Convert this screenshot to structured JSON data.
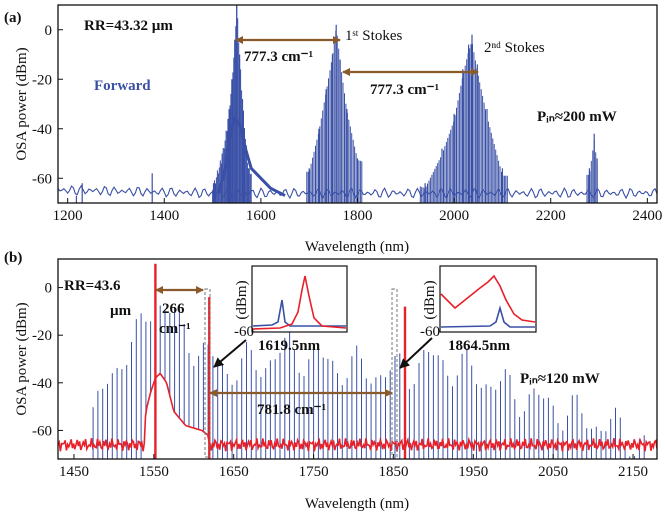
{
  "chart_data": [
    {
      "type": "line",
      "panel_label": "(a)",
      "xlabel": "Wavelength (nm)",
      "ylabel": "OSA power (dBm)",
      "xlim": [
        1180,
        2420
      ],
      "ylim": [
        -70,
        10
      ],
      "xticks": [
        "1200",
        "1400",
        "1600",
        "1800",
        "2000",
        "2200",
        "2400"
      ],
      "yticks": [
        "0",
        "-20",
        "-40",
        "-60"
      ],
      "grid": false,
      "annotations": {
        "rr": "RR=43.32 µm",
        "forward": "Forward",
        "shift1": "777.3 cm⁻¹",
        "shift2": "777.3 cm⁻¹",
        "stokes1": "1ˢᵗ Stokes",
        "stokes2": "2ⁿᵈ Stokes",
        "pin": "Pᵢₙ≈200 mW"
      },
      "series": [
        {
          "color": "#3a50a6",
          "peaks": [
            {
              "x": 1218,
              "y": -67
            },
            {
              "x": 1230,
              "y": -62
            },
            {
              "x": 1375,
              "y": -58
            },
            {
              "x": 1502,
              "y": -62
            },
            {
              "x": 1520,
              "y": -50
            },
            {
              "x": 1532,
              "y": -36
            },
            {
              "x": 1540,
              "y": -20
            },
            {
              "x": 1546,
              "y": -4
            },
            {
              "x": 1550,
              "y": 12
            },
            {
              "x": 1556,
              "y": -10
            },
            {
              "x": 1562,
              "y": -28
            },
            {
              "x": 1574,
              "y": -56
            },
            {
              "x": 1700,
              "y": -56
            },
            {
              "x": 1720,
              "y": -40
            },
            {
              "x": 1735,
              "y": -24
            },
            {
              "x": 1748,
              "y": -10
            },
            {
              "x": 1756,
              "y": 2
            },
            {
              "x": 1764,
              "y": -12
            },
            {
              "x": 1778,
              "y": -32
            },
            {
              "x": 1800,
              "y": -52
            },
            {
              "x": 1940,
              "y": -62
            },
            {
              "x": 1975,
              "y": -48
            },
            {
              "x": 2000,
              "y": -34
            },
            {
              "x": 2018,
              "y": -16
            },
            {
              "x": 2030,
              "y": -6
            },
            {
              "x": 2037,
              "y": -2
            },
            {
              "x": 2048,
              "y": -14
            },
            {
              "x": 2068,
              "y": -32
            },
            {
              "x": 2100,
              "y": -56
            },
            {
              "x": 2280,
              "y": -56
            },
            {
              "x": 2290,
              "y": -42
            },
            {
              "x": 2296,
              "y": -52
            }
          ]
        }
      ]
    },
    {
      "type": "line",
      "panel_label": "(b)",
      "xlabel": "Wavelength (nm)",
      "ylabel": "OSA power (dBm)",
      "xlim": [
        1430,
        2180
      ],
      "ylim": [
        -72,
        12
      ],
      "xticks": [
        "1450",
        "1550",
        "1650",
        "1750",
        "1850",
        "1950",
        "2050",
        "2150"
      ],
      "yticks": [
        "0",
        "-20",
        "-40",
        "-60"
      ],
      "grid": false,
      "annotations": {
        "rr_line1": "RR=43.6",
        "rr_line2": "µm",
        "shift_small_1": "266",
        "shift_small_2": "cm⁻¹",
        "shift_large": "781.8 cm⁻¹",
        "pin": "Pᵢₙ≈120 mW",
        "inset1_caption": "1619.5nm",
        "inset2_caption": "1864.5nm",
        "inset_ylabel": "(dBm)",
        "inset_ytick": "-60"
      },
      "series": [
        {
          "color": "#3a50a6",
          "comb_spacing_nm": 6,
          "envelope": [
            {
              "x": 1470,
              "y": -58
            },
            {
              "x": 1490,
              "y": -42
            },
            {
              "x": 1510,
              "y": -28
            },
            {
              "x": 1530,
              "y": -22
            },
            {
              "x": 1550,
              "y": -4
            },
            {
              "x": 1580,
              "y": -14
            },
            {
              "x": 1610,
              "y": -28
            },
            {
              "x": 1640,
              "y": -34
            },
            {
              "x": 1680,
              "y": -32
            },
            {
              "x": 1720,
              "y": -26
            },
            {
              "x": 1750,
              "y": -30
            },
            {
              "x": 1800,
              "y": -34
            },
            {
              "x": 1850,
              "y": -36
            },
            {
              "x": 1900,
              "y": -30
            },
            {
              "x": 1950,
              "y": -36
            },
            {
              "x": 2000,
              "y": -44
            },
            {
              "x": 2050,
              "y": -50
            },
            {
              "x": 2100,
              "y": -56
            },
            {
              "x": 2150,
              "y": -62
            }
          ]
        },
        {
          "color": "#e8202a",
          "peaks": [
            {
              "x": 1552,
              "y": 10
            },
            {
              "x": 1619.5,
              "y": -4
            },
            {
              "x": 1864.5,
              "y": -8
            }
          ]
        }
      ]
    }
  ]
}
